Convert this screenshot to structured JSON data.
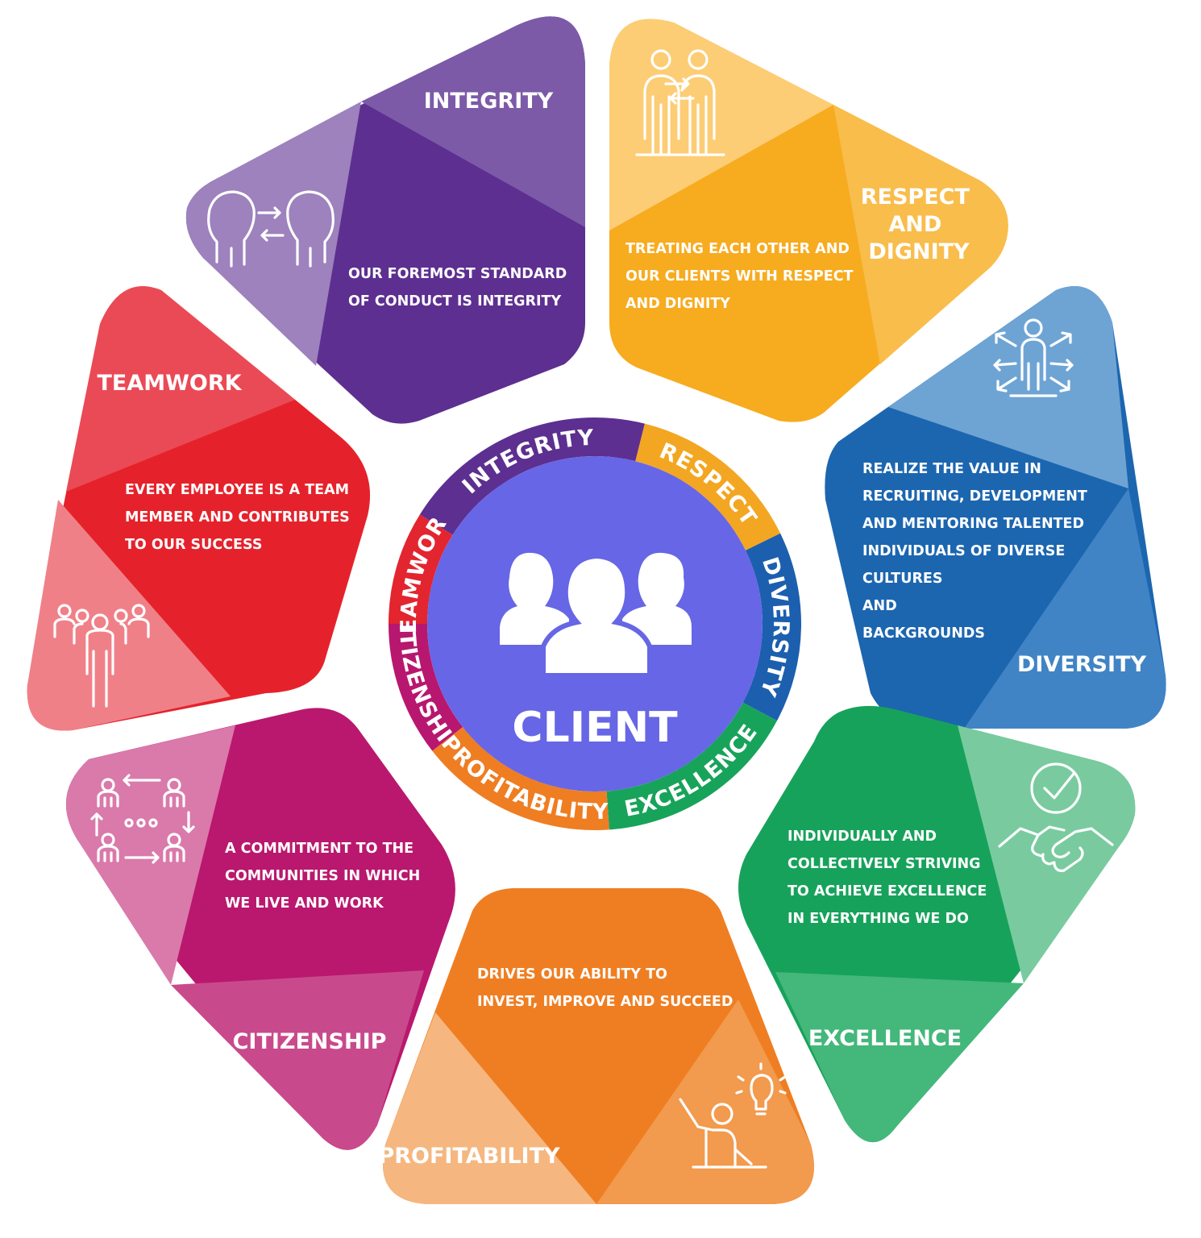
{
  "center": {
    "label": "CLIENT",
    "icon": "people-group-icon",
    "color": "#6666e6"
  },
  "ring": [
    {
      "label": "INTEGRITY",
      "color": "#5d2f90"
    },
    {
      "label": "RESPECT",
      "color": "#f3a621"
    },
    {
      "label": "DIVERSITY",
      "color": "#1c5fae"
    },
    {
      "label": "EXCELLENCE",
      "color": "#18a35a"
    },
    {
      "label": "PROFITABILITY",
      "color": "#ef7d22"
    },
    {
      "label": "CITIZENSHIP",
      "color": "#b8176f"
    },
    {
      "label": "TEAMWORK",
      "color": "#e32530"
    }
  ],
  "petals": {
    "integrity": {
      "title": [
        "INTEGRITY"
      ],
      "description": [
        "OUR FOREMOST STANDARD",
        "OF CONDUCT IS INTEGRITY"
      ],
      "icon": "two-heads-exchange-icon",
      "colors": {
        "main": "#5d2f90",
        "light": "#9d82bd",
        "mid": "#7c5aa8"
      }
    },
    "respect": {
      "title": [
        "RESPECT",
        "AND",
        "DIGNITY"
      ],
      "description": [
        "TREATING EACH OTHER AND",
        "OUR CLIENTS WITH RESPECT",
        "AND DIGNITY"
      ],
      "icon": "two-people-exchange-icon",
      "colors": {
        "main": "#f7ab1f",
        "light": "#fccd75",
        "mid": "#f9bd4c"
      }
    },
    "diversity": {
      "title": [
        "DIVERSITY"
      ],
      "description": [
        "REALIZE THE VALUE IN",
        "RECRUITING, DEVELOPMENT",
        "AND MENTORING TALENTED",
        "INDIVIDUALS OF DIVERSE",
        "CULTURES",
        "AND",
        "BACKGROUNDS"
      ],
      "icon": "person-arrows-icon",
      "colors": {
        "main": "#1c66b0",
        "light": "#6ea4d4",
        "mid": "#4084c5"
      }
    },
    "excellence": {
      "title": [
        "EXCELLENCE"
      ],
      "description": [
        "INDIVIDUALLY AND",
        "COLLECTIVELY STRIVING",
        "TO ACHIEVE EXCELLENCE",
        "IN EVERYTHING WE DO"
      ],
      "icon": "handshake-check-icon",
      "colors": {
        "main": "#17a25b",
        "light": "#79cb9f",
        "mid": "#44b77b"
      }
    },
    "profitability": {
      "title": [
        "PROFITABILITY"
      ],
      "description": [
        "DRIVES OUR ABILITY TO",
        "INVEST, IMPROVE AND SUCCEED"
      ],
      "icon": "person-lightbulb-icon",
      "colors": {
        "main": "#ef7e22",
        "light": "#f5b77f",
        "mid": "#f29a4d"
      }
    },
    "citizenship": {
      "title": [
        "CITIZENSHIP"
      ],
      "description": [
        "A COMMITMENT TO THE",
        "COMMUNITIES IN WHICH",
        "WE LIVE AND WORK"
      ],
      "icon": "community-cycle-icon",
      "colors": {
        "main": "#b9186e",
        "light": "#d97aaa",
        "mid": "#c84a8c"
      }
    },
    "teamwork": {
      "title": [
        "TEAMWORK"
      ],
      "description": [
        "EVERY EMPLOYEE IS A TEAM",
        "MEMBER AND CONTRIBUTES",
        "TO OUR SUCCESS"
      ],
      "icon": "team-group-icon",
      "colors": {
        "main": "#e5222b",
        "light": "#f08088",
        "mid": "#ea4a55"
      }
    }
  }
}
